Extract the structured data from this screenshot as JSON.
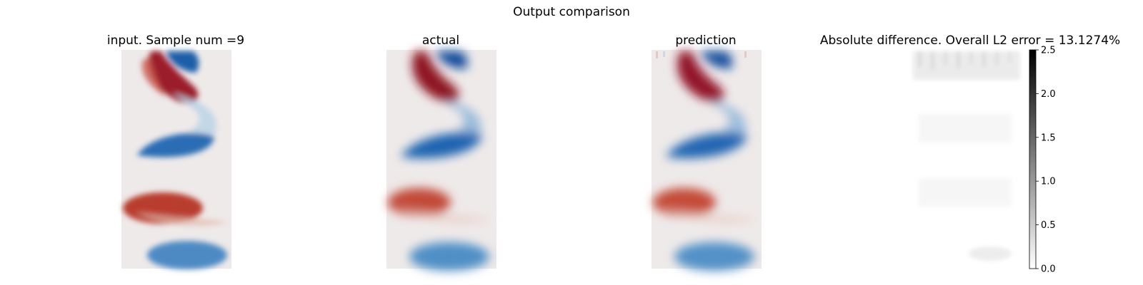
{
  "figure_title": "Output comparison",
  "colors": {
    "negative": "#0b4ea2",
    "neutral": "#efeaea",
    "positive": "#8b0a1f",
    "error_low": "#ffffff",
    "error_high": "#000000"
  },
  "chart_data": [
    {
      "type": "heatmap",
      "title": "input. Sample num =9",
      "colormap": "red-white-blue (diverging)",
      "grid": false,
      "axes_visible": false,
      "resolution": "low",
      "features": [
        {
          "sign": "negative",
          "intensity": 1.0
        },
        {
          "sign": "positive",
          "intensity": 0.95
        },
        {
          "sign": "negative",
          "intensity": 0.85
        },
        {
          "sign": "positive",
          "intensity": 0.8
        },
        {
          "sign": "negative",
          "intensity": 0.6
        }
      ]
    },
    {
      "type": "heatmap",
      "title": "actual",
      "colormap": "red-white-blue (diverging)",
      "grid": false,
      "axes_visible": false,
      "resolution": "high",
      "features": [
        {
          "sign": "negative",
          "intensity": 1.0
        },
        {
          "sign": "positive",
          "intensity": 0.95
        },
        {
          "sign": "negative",
          "intensity": 0.85
        },
        {
          "sign": "positive",
          "intensity": 0.8
        },
        {
          "sign": "negative",
          "intensity": 0.6
        }
      ]
    },
    {
      "type": "heatmap",
      "title": "prediction",
      "colormap": "red-white-blue (diverging)",
      "grid": false,
      "axes_visible": false,
      "resolution": "high",
      "features": [
        {
          "sign": "negative",
          "intensity": 1.0
        },
        {
          "sign": "positive",
          "intensity": 0.95
        },
        {
          "sign": "negative",
          "intensity": 0.85
        },
        {
          "sign": "positive",
          "intensity": 0.8
        },
        {
          "sign": "negative",
          "intensity": 0.6
        }
      ]
    },
    {
      "type": "heatmap",
      "title": "Absolute difference. Overall L2 error = 13.1274%",
      "colormap": "gray (white to black)",
      "grid": false,
      "axes_visible": false,
      "colorbar": {
        "ticks": [
          "0.0",
          "0.5",
          "1.0",
          "1.5",
          "2.0",
          "2.5"
        ],
        "range": [
          0,
          2.5
        ]
      }
    }
  ]
}
